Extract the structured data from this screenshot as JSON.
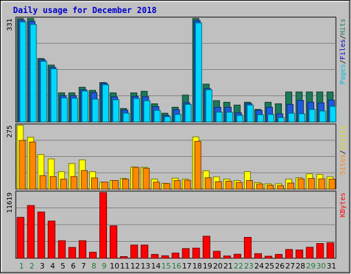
{
  "chart_data": {
    "type": "bar",
    "title": "Daily usage for December 2018",
    "x_labels": [
      "1",
      "2",
      "3",
      "4",
      "5",
      "6",
      "7",
      "8",
      "9",
      "10",
      "11",
      "12",
      "13",
      "14",
      "15",
      "16",
      "17",
      "18",
      "19",
      "20",
      "21",
      "22",
      "23",
      "24",
      "25",
      "26",
      "27",
      "28",
      "29",
      "30",
      "31"
    ],
    "weekend_days": [
      1,
      2,
      8,
      9,
      15,
      16,
      22,
      23,
      29,
      30
    ],
    "grid": true,
    "panels": [
      {
        "name": "hits-files-pages",
        "ymax": 331,
        "ymax_label": "331",
        "side_label": [
          "Pages",
          "/",
          "Files",
          "/",
          "Hits"
        ],
        "series": [
          {
            "name": "Hits",
            "color": "#1a7a5a",
            "values": [
              331,
              331,
              203,
              182,
              93,
              93,
              111,
              101,
              126,
              93,
              43,
              93,
              98,
              58,
              28,
              47,
              86,
              331,
              121,
              68,
              63,
              54,
              63,
              40,
              63,
              58,
              96,
              96,
              96,
              96,
              96
            ]
          },
          {
            "name": "Files",
            "color": "#1e5adc",
            "values": [
              326,
              322,
              199,
              175,
              84,
              84,
              103,
              94,
              124,
              80,
              38,
              82,
              81,
              49,
              21,
              39,
              61,
              324,
              107,
              47,
              47,
              29,
              59,
              37,
              47,
              26,
              56,
              69,
              63,
              61,
              70
            ]
          },
          {
            "name": "Pages",
            "color": "#00d8ff",
            "values": [
              320,
              312,
              194,
              170,
              77,
              76,
              99,
              73,
              119,
              71,
              28,
              75,
              68,
              37,
              17,
              24,
              56,
              317,
              103,
              31,
              31,
              21,
              54,
              23,
              24,
              14,
              28,
              26,
              40,
              35,
              50
            ]
          }
        ]
      },
      {
        "name": "visits-sites",
        "ymax": 275,
        "ymax_label": "275",
        "side_label": [
          "Sites",
          "/",
          "Visits"
        ],
        "series": [
          {
            "name": "Visits",
            "color": "#ffff00",
            "values": [
              275,
              224,
              149,
              130,
              75,
              110,
              126,
              75,
              30,
              37,
              46,
              95,
              94,
              43,
              25,
              47,
              43,
              225,
              79,
              53,
              43,
              37,
              75,
              28,
              23,
              23,
              43,
              49,
              66,
              63,
              53
            ]
          },
          {
            "name": "Sites",
            "color": "#ff8800",
            "values": [
              210,
              203,
              58,
              54,
              43,
              54,
              80,
              48,
              30,
              37,
              43,
              94,
              90,
              30,
              24,
              37,
              38,
              206,
              49,
              32,
              34,
              29,
              37,
              22,
              17,
              15,
              26,
              44,
              46,
              44,
              43
            ]
          }
        ]
      },
      {
        "name": "kbytes",
        "ymax": 11619,
        "ymax_label": "11619",
        "side_label": [
          "KBytes"
        ],
        "series": [
          {
            "name": "KBytes",
            "color": "#ff0000",
            "values": [
              7230,
              9320,
              8180,
              6570,
              3100,
              1910,
              3100,
              1060,
              11619,
              5730,
              300,
              2330,
              2330,
              680,
              440,
              920,
              1710,
              1790,
              3890,
              1230,
              400,
              710,
              3690,
              810,
              360,
              680,
              1550,
              1460,
              1940,
              2600,
              2740
            ]
          }
        ]
      }
    ]
  }
}
